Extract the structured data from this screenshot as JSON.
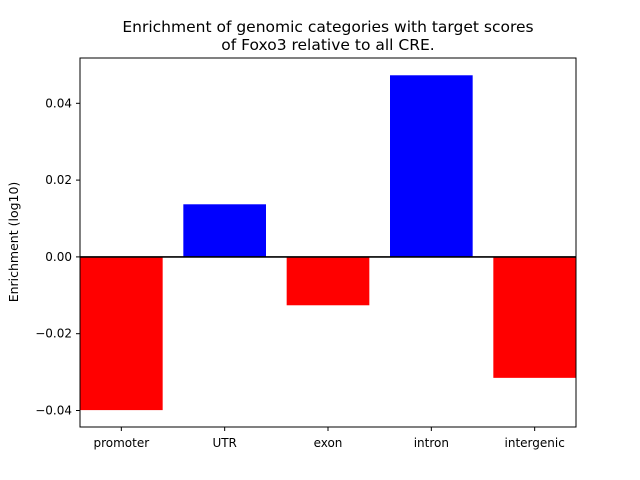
{
  "chart_data": {
    "type": "bar",
    "title_lines": [
      "Enrichment of genomic categories with target scores",
      "of Foxo3 relative to all CRE."
    ],
    "xlabel": "",
    "ylabel": "Enrichment (log10)",
    "categories": [
      "promoter",
      "UTR",
      "exon",
      "intron",
      "intergenic"
    ],
    "values": [
      -0.0399,
      0.0137,
      -0.0126,
      0.0473,
      -0.0315
    ],
    "ylim": [
      -0.0443,
      0.0518
    ],
    "yticks": [
      -0.04,
      -0.02,
      0.0,
      0.02,
      0.04
    ],
    "ytick_labels": [
      "−0.04",
      "−0.02",
      "0.00",
      "0.02",
      "0.04"
    ],
    "positive_color": "#0000ff",
    "negative_color": "#ff0000",
    "zero_line": true,
    "grid": false,
    "legend": "none"
  }
}
